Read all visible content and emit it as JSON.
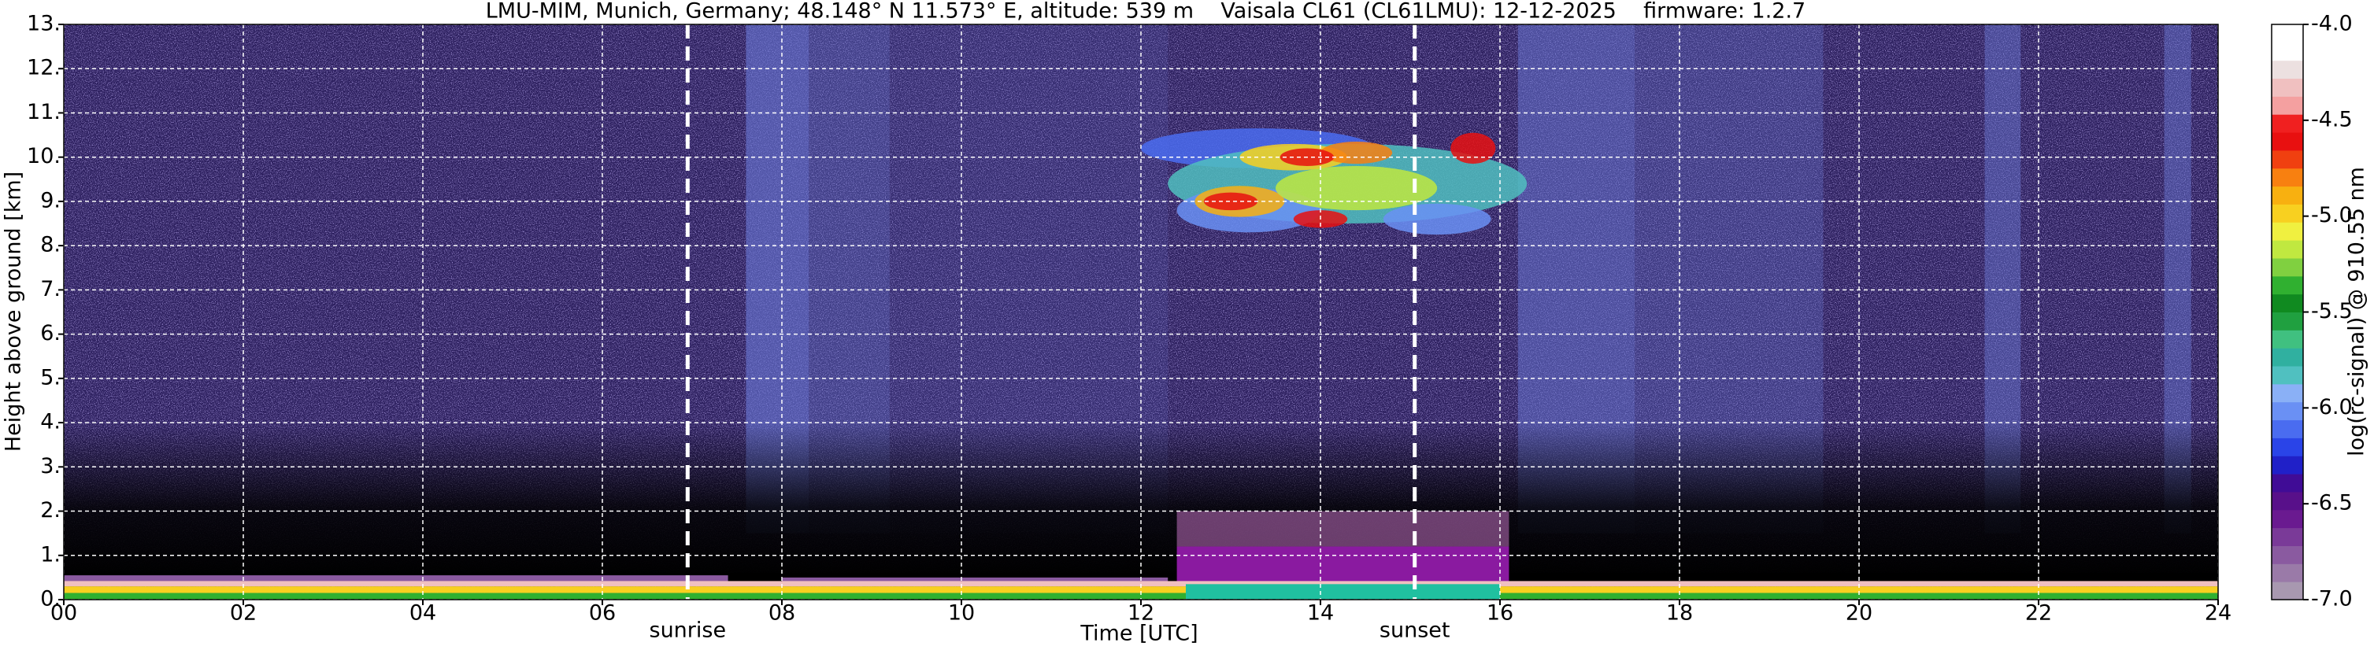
{
  "chart_data": {
    "type": "heatmap",
    "title": "LMU-MIM, Munich, Germany; 48.148° N 11.573° E, altitude: 539 m    Vaisala CL61 (CL61LMU): 12-12-2025    firmware: 1.2.7",
    "xlabel": "Time [UTC]",
    "ylabel": "Height above ground [km]",
    "xlim": [
      0,
      24
    ],
    "xticks": [
      {
        "value": 0,
        "label": "00"
      },
      {
        "value": 2,
        "label": "02"
      },
      {
        "value": 4,
        "label": "04"
      },
      {
        "value": 6,
        "label": "06"
      },
      {
        "value": 8,
        "label": "08"
      },
      {
        "value": 10,
        "label": "10"
      },
      {
        "value": 12,
        "label": "12"
      },
      {
        "value": 14,
        "label": "14"
      },
      {
        "value": 16,
        "label": "16"
      },
      {
        "value": 18,
        "label": "18"
      },
      {
        "value": 20,
        "label": "20"
      },
      {
        "value": 22,
        "label": "22"
      },
      {
        "value": 24,
        "label": "24"
      }
    ],
    "ylim": [
      0,
      13
    ],
    "yticks": [
      {
        "value": 0,
        "label": "0."
      },
      {
        "value": 1,
        "label": "1."
      },
      {
        "value": 2,
        "label": "2."
      },
      {
        "value": 3,
        "label": "3."
      },
      {
        "value": 4,
        "label": "4."
      },
      {
        "value": 5,
        "label": "5."
      },
      {
        "value": 6,
        "label": "6."
      },
      {
        "value": 7,
        "label": "7."
      },
      {
        "value": 8,
        "label": "8."
      },
      {
        "value": 9,
        "label": "9."
      },
      {
        "value": 10,
        "label": "10."
      },
      {
        "value": 11,
        "label": "11."
      },
      {
        "value": 12,
        "label": "12."
      },
      {
        "value": 13,
        "label": "13."
      }
    ],
    "grid": true,
    "annotations": [
      {
        "text": "sunrise",
        "x": 6.95
      },
      {
        "text": "sunset",
        "x": 15.05
      }
    ],
    "colorbar": {
      "label": "log(rc-signal) @ 910.55 nm",
      "lim": [
        -7,
        -4
      ],
      "ticks": [
        {
          "value": -7,
          "label": "-7.0"
        },
        {
          "value": -6.5,
          "label": "-6.5"
        },
        {
          "value": -6,
          "label": "-6.0"
        },
        {
          "value": -5.5,
          "label": "-5.5"
        },
        {
          "value": -5,
          "label": "-5.0"
        },
        {
          "value": -4.5,
          "label": "-4.5"
        },
        {
          "value": -4,
          "label": "-4.0"
        }
      ],
      "colors": [
        "#a898b0",
        "#9a7aa8",
        "#8a5aa0",
        "#7a3a98",
        "#6a1a90",
        "#58108a",
        "#400c96",
        "#2020c8",
        "#2a44e8",
        "#4a6cf0",
        "#6a90f4",
        "#8ab0f6",
        "#50c0c0",
        "#30b0a0",
        "#40c080",
        "#20a040",
        "#108a20",
        "#30b030",
        "#80d040",
        "#c0e840",
        "#f0f040",
        "#f8d020",
        "#f8b010",
        "#f88010",
        "#f04010",
        "#e81010",
        "#f02020",
        "#f4a0a0",
        "#f0c0c0",
        "#ece0e0",
        "#ffffff",
        "#ffffff"
      ]
    }
  }
}
